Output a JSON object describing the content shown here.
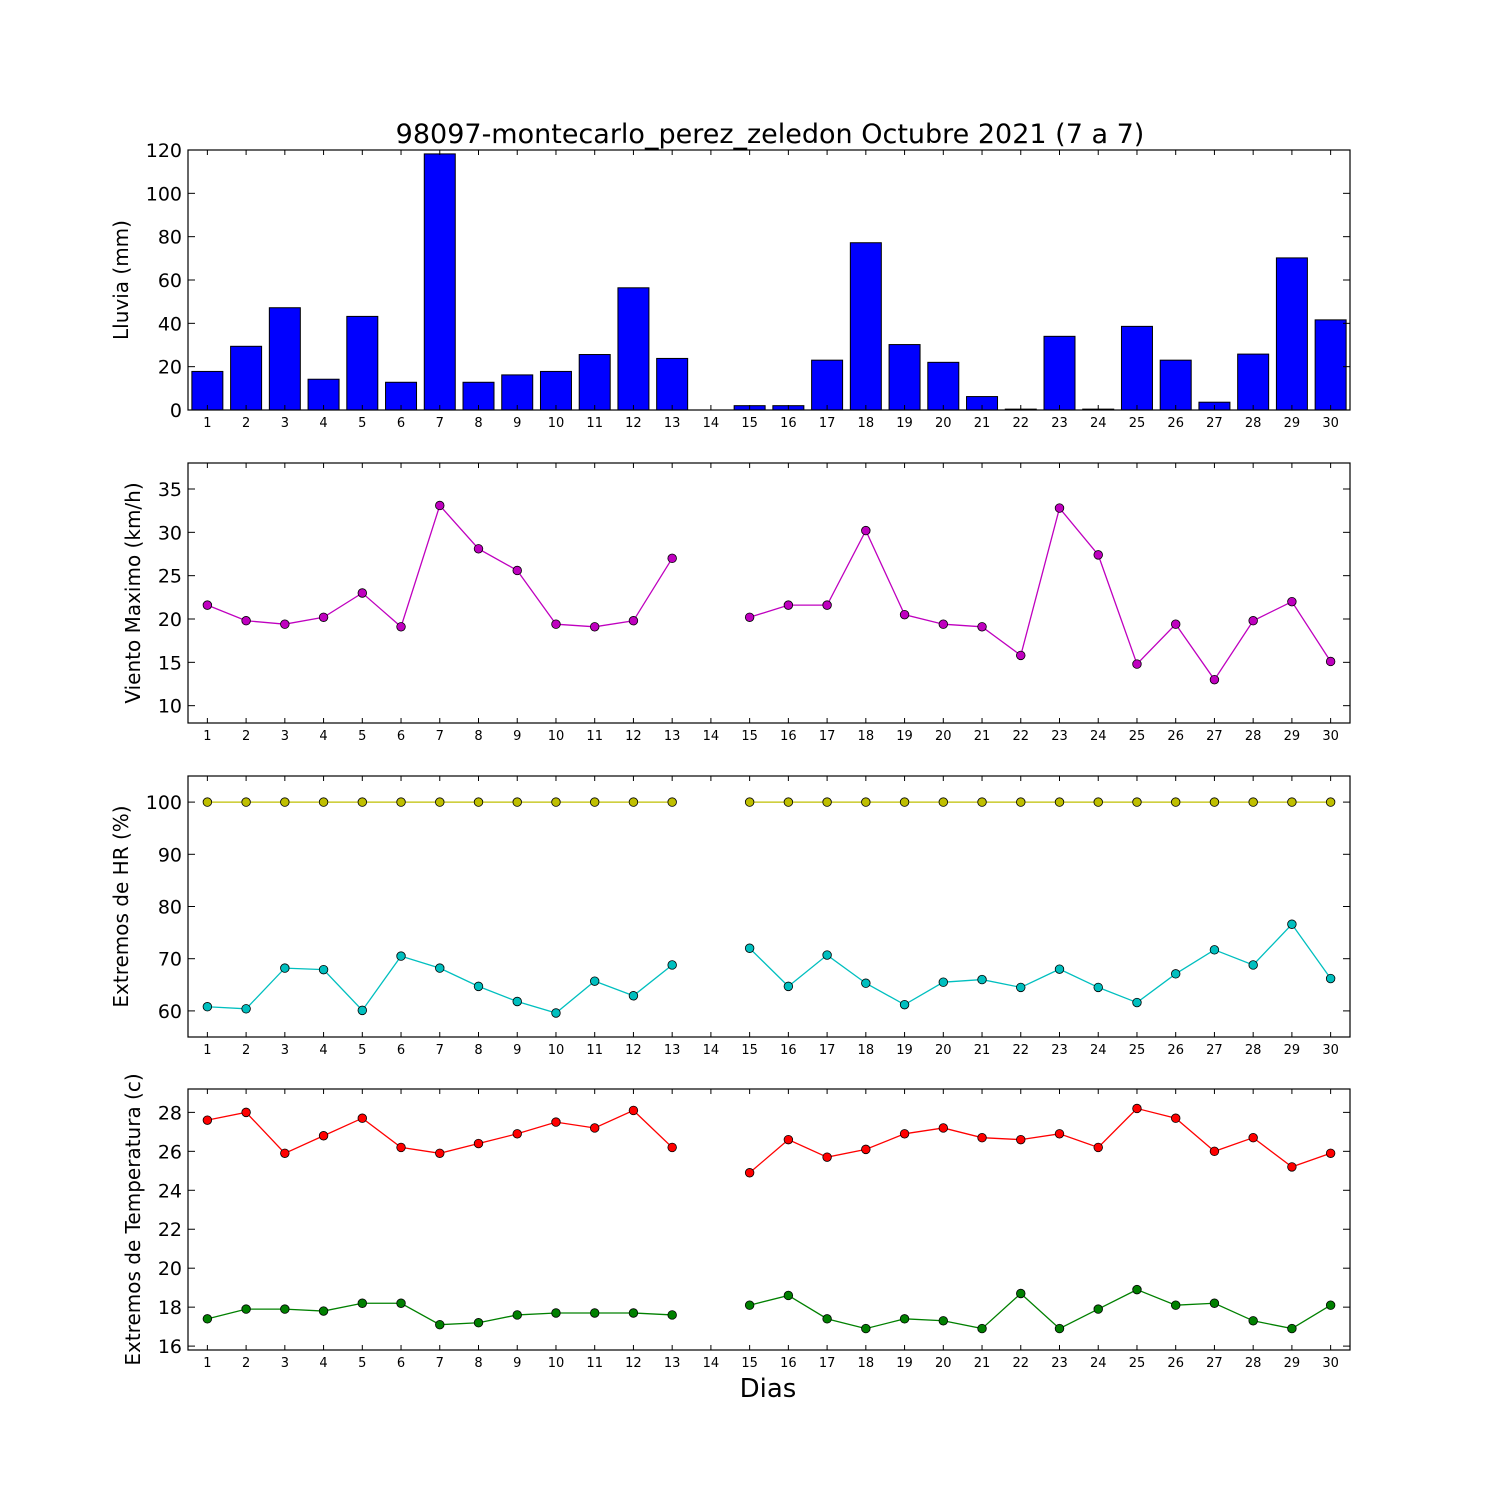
{
  "chart_data": {
    "title": "98097-montecarlo_perez_zeledon Octubre 2021  (7 a 7)",
    "xlabel": "Dias",
    "days": [
      1,
      2,
      3,
      4,
      5,
      6,
      7,
      8,
      9,
      10,
      11,
      12,
      13,
      14,
      15,
      16,
      17,
      18,
      19,
      20,
      21,
      22,
      23,
      24,
      25,
      26,
      27,
      28,
      29,
      30
    ],
    "panels": [
      {
        "type": "bar",
        "ylabel": "Lluvia (mm)",
        "ylim": [
          0,
          120
        ],
        "yticks": [
          0,
          20,
          40,
          60,
          80,
          100,
          120
        ],
        "series": [
          {
            "color": "#0000ff",
            "values": [
              17.8,
              29.4,
              47.2,
              14.2,
              43.2,
              12.8,
              118.2,
              12.8,
              16.2,
              17.8,
              25.6,
              56.4,
              23.8,
              0,
              2.0,
              2.0,
              23.0,
              77.2,
              30.2,
              22.0,
              6.2,
              0.4,
              34.0,
              0.4,
              38.6,
              23.0,
              3.6,
              25.8,
              70.2,
              41.6
            ]
          }
        ]
      },
      {
        "type": "line",
        "ylabel": "Viento Maximo (km/h)",
        "ylim": [
          8,
          38
        ],
        "yticks": [
          10,
          15,
          20,
          25,
          30,
          35
        ],
        "series": [
          {
            "color": "#bf00bf",
            "values": [
              21.6,
              19.8,
              19.4,
              20.2,
              23.0,
              19.1,
              33.1,
              28.1,
              25.6,
              19.4,
              19.1,
              19.8,
              27.0,
              null,
              20.2,
              21.6,
              21.6,
              30.2,
              20.5,
              19.4,
              19.1,
              15.8,
              32.8,
              27.4,
              14.8,
              19.4,
              13.0,
              19.8,
              22.0,
              15.1
            ]
          }
        ]
      },
      {
        "type": "line",
        "ylabel": "Extremos de HR (%)",
        "ylim": [
          55,
          105
        ],
        "yticks": [
          60,
          70,
          80,
          90,
          100
        ],
        "series": [
          {
            "color": "#bfbf00",
            "values": [
              100,
              100,
              100,
              100,
              100,
              100,
              100,
              100,
              100,
              100,
              100,
              100,
              100,
              null,
              100,
              100,
              100,
              100,
              100,
              100,
              100,
              100,
              100,
              100,
              100,
              100,
              100,
              100,
              100,
              100
            ]
          },
          {
            "color": "#00bfbf",
            "values": [
              60.8,
              60.4,
              68.2,
              67.9,
              60.1,
              70.5,
              68.2,
              64.7,
              61.8,
              59.6,
              65.7,
              62.9,
              68.8,
              null,
              72.0,
              64.7,
              70.7,
              65.3,
              61.2,
              65.5,
              66.0,
              64.5,
              68.0,
              64.5,
              61.6,
              67.1,
              71.7,
              68.8,
              76.6,
              66.2
            ]
          }
        ]
      },
      {
        "type": "line",
        "ylabel": "Extremos de Temperatura (c)",
        "ylim": [
          15.8,
          29.2
        ],
        "yticks": [
          16,
          18,
          20,
          22,
          24,
          26,
          28
        ],
        "series": [
          {
            "color": "#ff0000",
            "values": [
              27.6,
              28.0,
              25.9,
              26.8,
              27.7,
              26.2,
              25.9,
              26.4,
              26.9,
              27.5,
              27.2,
              28.1,
              26.2,
              null,
              24.9,
              26.6,
              25.7,
              26.1,
              26.9,
              27.2,
              26.7,
              26.6,
              26.9,
              26.2,
              28.2,
              27.7,
              26.0,
              26.7,
              25.2,
              25.9
            ]
          },
          {
            "color": "#008000",
            "values": [
              17.4,
              17.9,
              17.9,
              17.8,
              18.2,
              18.2,
              17.1,
              17.2,
              17.6,
              17.7,
              17.7,
              17.7,
              17.6,
              null,
              18.1,
              18.6,
              17.4,
              16.9,
              17.4,
              17.3,
              16.9,
              18.7,
              16.9,
              17.9,
              18.9,
              18.1,
              18.2,
              17.3,
              16.9,
              18.1
            ]
          }
        ]
      }
    ]
  }
}
